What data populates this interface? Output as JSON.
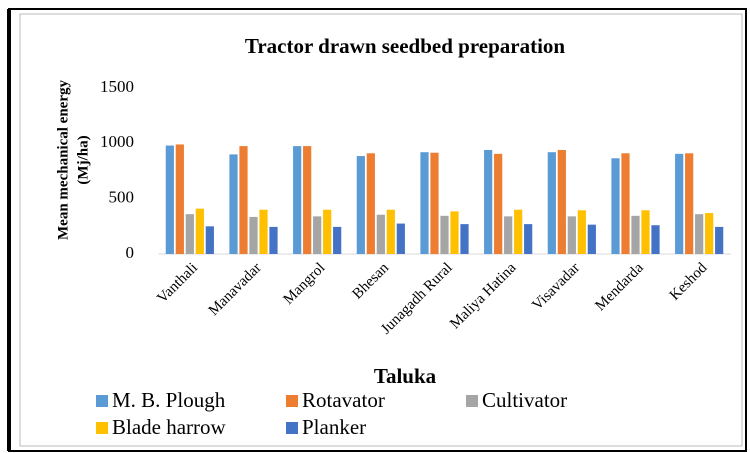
{
  "chart_data": {
    "type": "bar",
    "title": "Tractor drawn seedbed preparation",
    "y_label": [
      "Mean mechanical energy",
      "(Mj/ha)"
    ],
    "x_label": "Taluka",
    "categories": [
      "Vanthali",
      "Manavadar",
      "Mangrol",
      "Bhesan",
      "Junagadh Rural",
      "Maliya Hatina",
      "Visavadar",
      "Mendarda",
      "Keshod"
    ],
    "series": [
      {
        "name": "M. B. Plough",
        "color": "#5b9bd5",
        "values": [
          980,
          900,
          975,
          885,
          920,
          940,
          920,
          865,
          905
        ]
      },
      {
        "name": "Rotavator",
        "color": "#ed7d31",
        "values": [
          990,
          975,
          975,
          910,
          915,
          905,
          940,
          910,
          910
        ]
      },
      {
        "name": "Cultivator",
        "color": "#a5a5a5",
        "values": [
          360,
          335,
          340,
          355,
          345,
          340,
          340,
          345,
          360
        ]
      },
      {
        "name": "Blade harrow",
        "color": "#ffc000",
        "values": [
          410,
          400,
          400,
          400,
          385,
          400,
          395,
          395,
          370
        ]
      },
      {
        "name": "Planker",
        "color": "#4472c4",
        "values": [
          250,
          245,
          245,
          275,
          270,
          270,
          265,
          260,
          245
        ]
      }
    ],
    "ylim": [
      0,
      1500
    ],
    "yticks": [
      0,
      500,
      1000,
      1500
    ],
    "grid": false
  }
}
